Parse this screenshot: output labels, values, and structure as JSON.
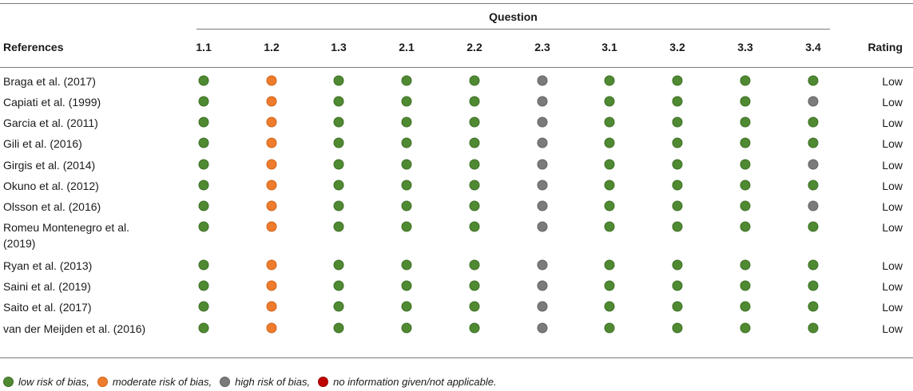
{
  "table": {
    "group_header": "Question",
    "ref_header": "References",
    "rating_header": "Rating",
    "columns": [
      "1.1",
      "1.2",
      "1.3",
      "2.1",
      "2.2",
      "2.3",
      "3.1",
      "3.2",
      "3.3",
      "3.4"
    ],
    "rows": [
      {
        "reference": "Braga et al. (2017)",
        "ratings": [
          "low",
          "moderate",
          "low",
          "low",
          "low",
          "high",
          "low",
          "low",
          "low",
          "low"
        ],
        "overall": "Low"
      },
      {
        "reference": "Capiati et al. (1999)",
        "ratings": [
          "low",
          "moderate",
          "low",
          "low",
          "low",
          "high",
          "low",
          "low",
          "low",
          "high"
        ],
        "overall": "Low"
      },
      {
        "reference": "Garcia et al. (2011)",
        "ratings": [
          "low",
          "moderate",
          "low",
          "low",
          "low",
          "high",
          "low",
          "low",
          "low",
          "low"
        ],
        "overall": "Low"
      },
      {
        "reference": "Gili et al. (2016)",
        "ratings": [
          "low",
          "moderate",
          "low",
          "low",
          "low",
          "high",
          "low",
          "low",
          "low",
          "low"
        ],
        "overall": "Low"
      },
      {
        "reference": "Girgis et al. (2014)",
        "ratings": [
          "low",
          "moderate",
          "low",
          "low",
          "low",
          "high",
          "low",
          "low",
          "low",
          "high"
        ],
        "overall": "Low"
      },
      {
        "reference": "Okuno et al. (2012)",
        "ratings": [
          "low",
          "moderate",
          "low",
          "low",
          "low",
          "high",
          "low",
          "low",
          "low",
          "low"
        ],
        "overall": "Low"
      },
      {
        "reference": "Olsson et al. (2016)",
        "ratings": [
          "low",
          "moderate",
          "low",
          "low",
          "low",
          "high",
          "low",
          "low",
          "low",
          "high"
        ],
        "overall": "Low"
      },
      {
        "reference": "Romeu Montenegro et al. (2019)",
        "ratings": [
          "low",
          "moderate",
          "low",
          "low",
          "low",
          "high",
          "low",
          "low",
          "low",
          "low"
        ],
        "overall": "Low"
      },
      {
        "reference": "Ryan et al. (2013)",
        "ratings": [
          "low",
          "moderate",
          "low",
          "low",
          "low",
          "high",
          "low",
          "low",
          "low",
          "low"
        ],
        "overall": "Low"
      },
      {
        "reference": "Saini et al. (2019)",
        "ratings": [
          "low",
          "moderate",
          "low",
          "low",
          "low",
          "high",
          "low",
          "low",
          "low",
          "low"
        ],
        "overall": "Low"
      },
      {
        "reference": "Saito et al. (2017)",
        "ratings": [
          "low",
          "moderate",
          "low",
          "low",
          "low",
          "high",
          "low",
          "low",
          "low",
          "low"
        ],
        "overall": "Low"
      },
      {
        "reference": "van der Meijden et al. (2016)",
        "ratings": [
          "low",
          "moderate",
          "low",
          "low",
          "low",
          "high",
          "low",
          "low",
          "low",
          "low"
        ],
        "overall": "Low"
      }
    ]
  },
  "legend": [
    {
      "key": "low",
      "label": "low risk of bias,"
    },
    {
      "key": "moderate",
      "label": "moderate risk of bias,"
    },
    {
      "key": "high",
      "label": "high risk of bias,"
    },
    {
      "key": "na",
      "label": "no information given/not applicable."
    }
  ],
  "colors": {
    "low": "#4f8a32",
    "moderate": "#ee7c2c",
    "high": "#7b7b7b",
    "na": "#c00000"
  }
}
